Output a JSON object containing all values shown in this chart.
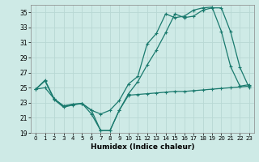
{
  "title": "",
  "xlabel": "Humidex (Indice chaleur)",
  "ylabel": "",
  "background_color": "#ceeae6",
  "grid_color": "#b8d8d4",
  "line_color": "#1a7a6e",
  "x_values": [
    0,
    1,
    2,
    3,
    4,
    5,
    6,
    7,
    8,
    9,
    10,
    11,
    12,
    13,
    14,
    15,
    16,
    17,
    18,
    19,
    20,
    21,
    22,
    23
  ],
  "series1": [
    24.8,
    26.0,
    23.5,
    22.5,
    22.8,
    22.9,
    22.0,
    21.5,
    22.0,
    23.3,
    25.5,
    26.5,
    30.8,
    32.2,
    34.8,
    34.3,
    34.5,
    35.3,
    35.6,
    35.7,
    32.5,
    27.8,
    25.2,
    25.4
  ],
  "series2": [
    24.8,
    25.9,
    23.4,
    22.4,
    22.7,
    22.9,
    21.5,
    19.3,
    19.3,
    22.0,
    24.2,
    25.8,
    28.0,
    30.0,
    32.3,
    34.8,
    34.3,
    34.5,
    35.3,
    35.6,
    35.6,
    32.4,
    27.7,
    25.0
  ],
  "series3": [
    24.8,
    25.0,
    23.5,
    22.6,
    22.8,
    22.9,
    22.0,
    19.3,
    19.3,
    22.0,
    24.0,
    24.1,
    24.2,
    24.3,
    24.4,
    24.5,
    24.5,
    24.6,
    24.7,
    24.8,
    24.9,
    25.0,
    25.1,
    25.2
  ],
  "ylim": [
    19,
    36
  ],
  "yticks": [
    19,
    21,
    23,
    25,
    27,
    29,
    31,
    33,
    35
  ],
  "xlim": [
    -0.5,
    23.5
  ],
  "marker": "+"
}
